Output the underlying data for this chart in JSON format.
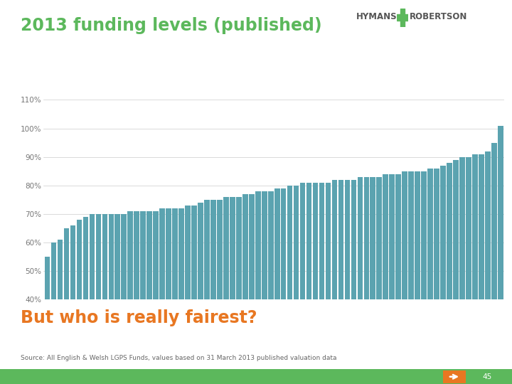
{
  "title": "2013 funding levels (published)",
  "subtitle": "But who is really fairest?",
  "source": "Source: All English & Welsh LGPS Funds, values based on 31 March 2013 published valuation data",
  "title_color": "#5cb85c",
  "subtitle_color": "#e87722",
  "bar_color": "#5ba3b0",
  "background_color": "#ffffff",
  "ylim": [
    40,
    110
  ],
  "yticks": [
    40,
    50,
    60,
    70,
    80,
    90,
    100,
    110
  ],
  "ytick_labels": [
    "40%",
    "50%",
    "60%",
    "70%",
    "80%",
    "90%",
    "100%",
    "110%"
  ],
  "values": [
    55,
    60,
    61,
    65,
    66,
    68,
    69,
    70,
    70,
    70,
    70,
    70,
    70,
    71,
    71,
    71,
    71,
    71,
    72,
    72,
    72,
    72,
    73,
    73,
    74,
    75,
    75,
    75,
    76,
    76,
    76,
    77,
    77,
    78,
    78,
    78,
    79,
    79,
    80,
    80,
    81,
    81,
    81,
    81,
    81,
    82,
    82,
    82,
    82,
    83,
    83,
    83,
    83,
    84,
    84,
    84,
    85,
    85,
    85,
    85,
    86,
    86,
    87,
    88,
    89,
    90,
    90,
    91,
    91,
    92,
    95,
    101
  ],
  "page_number": "45",
  "bottom_bar_color": "#5cb85c",
  "arrow_color": "#e87722",
  "logo_color": "#555555",
  "cross_color": "#5cb85c",
  "grid_color": "#cccccc",
  "source_color": "#666666"
}
